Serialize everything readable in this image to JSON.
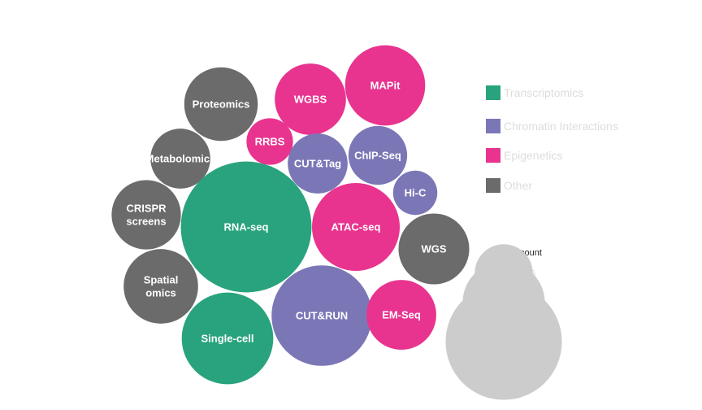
{
  "chart_data": {
    "type": "packed-bubble",
    "colors": {
      "Transcriptomics": "#29a37e",
      "Chromatin Interactions": "#7b77b7",
      "Epigenetics": "#e8348f",
      "Other": "#6b6b6b"
    },
    "legend": [
      "Transcriptomics",
      "Chromatin Interactions",
      "Epigenetics",
      "Other"
    ],
    "size_legend": {
      "title": "Dataset count",
      "values": [
        5,
        10,
        20
      ]
    },
    "bubbles": [
      {
        "label": [
          "Proteomics"
        ],
        "category": "Other",
        "value": 8
      },
      {
        "label": [
          "WGBS"
        ],
        "category": "Epigenetics",
        "value": 7.5
      },
      {
        "label": [
          "MAPit"
        ],
        "category": "Epigenetics",
        "value": 9.5
      },
      {
        "label": [
          "RRBS"
        ],
        "category": "Epigenetics",
        "value": 3.2
      },
      {
        "label": [
          "Metabolomics"
        ],
        "category": "Other",
        "value": 5.3
      },
      {
        "label": [
          "CUT&Tag"
        ],
        "category": "Chromatin Interactions",
        "value": 5.3
      },
      {
        "label": [
          "ChIP-Seq"
        ],
        "category": "Chromatin Interactions",
        "value": 5.1
      },
      {
        "label": [
          "Hi-C"
        ],
        "category": "Chromatin Interactions",
        "value": 2.9
      },
      {
        "label": [
          "CRISPR",
          "screens"
        ],
        "category": "Other",
        "value": 7.1
      },
      {
        "label": [
          "RNA-seq"
        ],
        "category": "Transcriptomics",
        "value": 25.3
      },
      {
        "label": [
          "ATAC-seq"
        ],
        "category": "Epigenetics",
        "value": 11.4
      },
      {
        "label": [
          "WGS"
        ],
        "category": "Other",
        "value": 7.4
      },
      {
        "label": [
          "Spatial",
          "omics"
        ],
        "category": "Other",
        "value": 8.2
      },
      {
        "label": [
          "CUT&RUN"
        ],
        "category": "Chromatin Interactions",
        "value": 14.9
      },
      {
        "label": [
          "EM-Seq"
        ],
        "category": "Epigenetics",
        "value": 7.2
      },
      {
        "label": [
          "Single-cell"
        ],
        "category": "Transcriptomics",
        "value": 12.4
      }
    ]
  }
}
